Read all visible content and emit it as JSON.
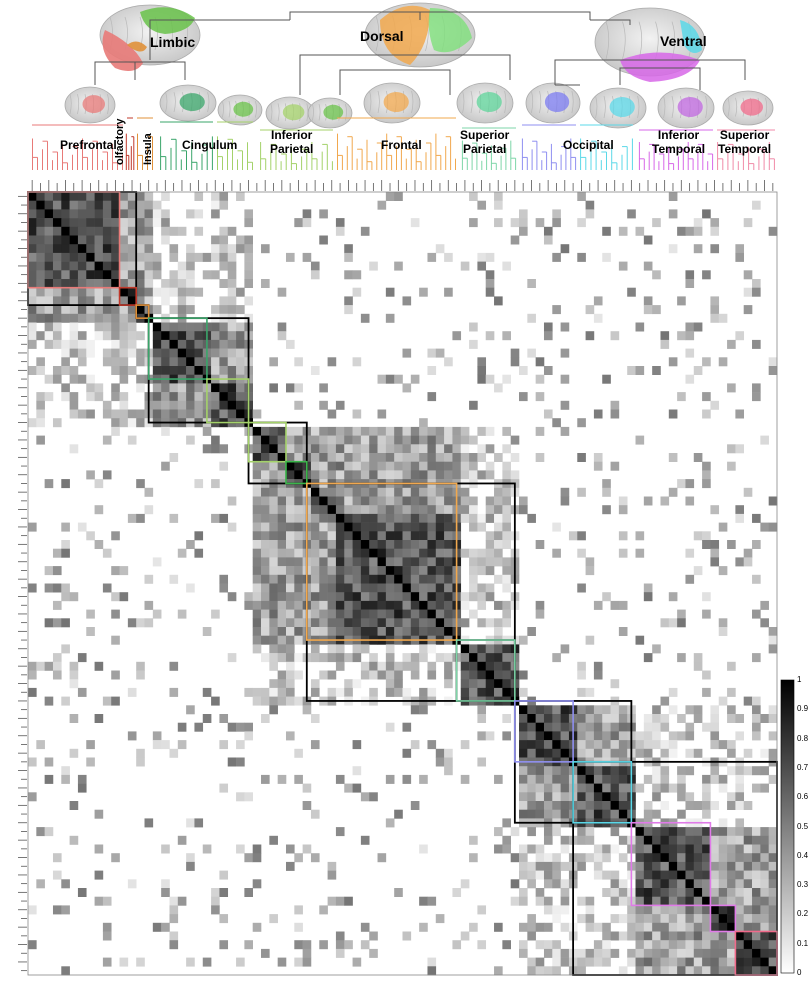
{
  "major_groups": [
    {
      "label": "Limbic"
    },
    {
      "label": "Dorsal"
    },
    {
      "label": "Ventral"
    }
  ],
  "regions": [
    {
      "label": "Prefrontal",
      "color": "#e87a78"
    },
    {
      "label": "olfactory",
      "color": "#c0392b"
    },
    {
      "label": "Insula",
      "color": "#e0913a"
    },
    {
      "label": "Cingulum",
      "color": "#3aa56a"
    },
    {
      "label": "Inferior\nParietal",
      "color": "#a4d26a"
    },
    {
      "label": "Frontal",
      "color": "#f1a84e"
    },
    {
      "label": "Superior\nParietal",
      "color": "#7ed6a8"
    },
    {
      "label": "Occipital",
      "color": "#8f8ff0"
    },
    {
      "label": "Inferior\nTemporal",
      "color": "#e07be8"
    },
    {
      "label": "Superior\nTemporal",
      "color": "#f08aa8"
    }
  ],
  "colorbar": {
    "ticks": [
      "1",
      "0.9",
      "0.8",
      "0.7",
      "0.6",
      "0.5",
      "0.4",
      "0.3",
      "0.2",
      "0.1",
      "0"
    ]
  },
  "block_colors": {
    "outline": "#000000",
    "prefrontal": "#e87a78",
    "olfactory": "#c0392b",
    "insula": "#e0913a",
    "cingulum_a": "#3aa56a",
    "cingulum_b": "#a4d26a",
    "inferior_parietal_a": "#a4d26a",
    "inferior_parietal_b": "#3ab54a",
    "frontal": "#f1a84e",
    "superior_parietal": "#7ed6a8",
    "occipital_a": "#8f8ff0",
    "occipital_b": "#5bd8e8",
    "inferior_temporal": "#e07be8",
    "superior_temporal_a": "#e07be8",
    "superior_temporal_b": "#f06a8a"
  }
}
